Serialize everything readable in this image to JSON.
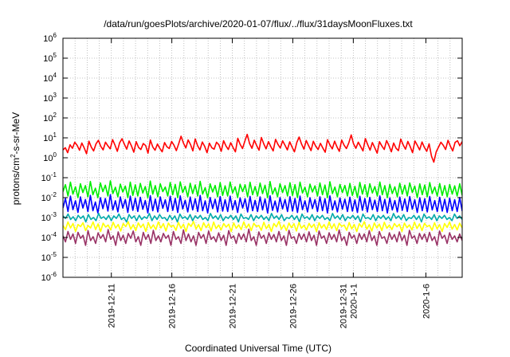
{
  "chart_data": {
    "type": "line",
    "title": "/data/run/goesPlots/archive/2020-01-07/flux/../flux/31daysMoonFluxes.txt",
    "xlabel": "Coordinated Universal Time (UTC)",
    "ylabel_parts": [
      "protons/cm",
      "2",
      "-s-sr-MeV"
    ],
    "y_scale": "log",
    "ylim": [
      1e-06,
      1000000.0
    ],
    "xlim": [
      "2019-12-07",
      "2020-01-09"
    ],
    "grid": true,
    "y_ticks": [
      {
        "value": 1e-06,
        "base": "10",
        "exp": "-6"
      },
      {
        "value": 1e-05,
        "base": "10",
        "exp": "-5"
      },
      {
        "value": 0.0001,
        "base": "10",
        "exp": "-4"
      },
      {
        "value": 0.001,
        "base": "10",
        "exp": "-3"
      },
      {
        "value": 0.01,
        "base": "10",
        "exp": "-2"
      },
      {
        "value": 0.1,
        "base": "10",
        "exp": "-1"
      },
      {
        "value": 1.0,
        "base": "10",
        "exp": "0"
      },
      {
        "value": 10.0,
        "base": "10",
        "exp": "1"
      },
      {
        "value": 100.0,
        "base": "10",
        "exp": "2"
      },
      {
        "value": 1000.0,
        "base": "10",
        "exp": "3"
      },
      {
        "value": 10000.0,
        "base": "10",
        "exp": "4"
      },
      {
        "value": 100000.0,
        "base": "10",
        "exp": "5"
      },
      {
        "value": 1000000.0,
        "base": "10",
        "exp": "6"
      }
    ],
    "x_ticks": [
      {
        "date": "2019-12-11",
        "labels": [
          "2019-12-11"
        ]
      },
      {
        "date": "2019-12-16",
        "labels": [
          "2019-12-16"
        ]
      },
      {
        "date": "2019-12-21",
        "labels": [
          "2019-12-21"
        ]
      },
      {
        "date": "2019-12-26",
        "labels": [
          "2019-12-26"
        ]
      },
      {
        "date": "2019-12-31",
        "labels": [
          "2019-12-31",
          "2020-1-1"
        ]
      },
      {
        "date": "2020-01-06",
        "labels": [
          "2020-1-6"
        ]
      }
    ],
    "series": [
      {
        "color": "#ff0000",
        "x_start": "2019-12-07",
        "x_end": "2020-01-09",
        "values": [
          2.5,
          3.2,
          1.8,
          4.5,
          3.0,
          6.0,
          4.2,
          2.4,
          5.5,
          3.1,
          1.6,
          6.8,
          3.4,
          2.2,
          5.0,
          7.5,
          3.8,
          2.5,
          6.1,
          4.0,
          2.8,
          8.2,
          4.4,
          2.1,
          5.6,
          9.0,
          4.8,
          2.7,
          7.0,
          3.9,
          1.9,
          6.4,
          3.3,
          2.6,
          5.2,
          4.1,
          1.7,
          7.8,
          3.5,
          2.4,
          4.9,
          3.0,
          2.0,
          5.8,
          3.6,
          2.9,
          6.6,
          4.3,
          2.3,
          5.1,
          12.0,
          5.5,
          3.1,
          7.9,
          4.6,
          2.2,
          8.8,
          4.0,
          2.5,
          6.2,
          3.7,
          1.8,
          5.4,
          3.2,
          2.7,
          6.0,
          4.5,
          2.1,
          7.2,
          3.9,
          2.6,
          5.7,
          3.3,
          2.0,
          9.5,
          4.8,
          2.9,
          6.9,
          15.0,
          5.2,
          3.0,
          7.6,
          4.1,
          2.4,
          10.5,
          5.0,
          2.8,
          6.5,
          3.6,
          2.2,
          8.4,
          4.7,
          3.1,
          7.1,
          4.2,
          2.5,
          6.3,
          3.4,
          2.0,
          5.9,
          11.0,
          4.9,
          2.7,
          7.4,
          4.0,
          2.3,
          6.7,
          3.8,
          2.6,
          5.3,
          3.1,
          1.9,
          8.1,
          4.4,
          2.8,
          6.8,
          3.5,
          2.1,
          7.7,
          4.3,
          2.9,
          5.6,
          14.0,
          5.1,
          3.0,
          6.1,
          3.7,
          2.2,
          9.2,
          4.6,
          2.4,
          5.8,
          3.2,
          1.7,
          6.4,
          3.9,
          2.6,
          7.3,
          4.1,
          2.0,
          5.5,
          3.0,
          2.3,
          8.6,
          4.5,
          2.7,
          6.6,
          3.6,
          1.8,
          7.0,
          4.2,
          2.5,
          6.2,
          3.3,
          2.1,
          5.0,
          1.2,
          0.6,
          2.0,
          3.5,
          6.0,
          4.2,
          2.6,
          7.5,
          3.8,
          2.2,
          5.9,
          7.2,
          4.0,
          6.5
        ]
      },
      {
        "color": "#00ee00",
        "x_start": "2019-12-07",
        "x_end": "2020-01-09",
        "values": [
          0.02,
          0.045,
          0.012,
          0.06,
          0.015,
          0.035,
          0.01,
          0.05,
          0.018,
          0.04,
          0.011,
          0.065,
          0.014,
          0.03,
          0.01,
          0.055,
          0.02,
          0.042,
          0.012,
          0.07,
          0.016,
          0.033,
          0.011,
          0.048,
          0.019,
          0.038,
          0.01,
          0.06,
          0.013,
          0.044,
          0.012,
          0.052,
          0.017,
          0.036,
          0.01,
          0.068,
          0.015,
          0.04,
          0.011,
          0.05,
          0.02,
          0.034,
          0.012,
          0.058,
          0.014,
          0.046,
          0.01,
          0.062,
          0.018,
          0.037,
          0.011,
          0.053,
          0.016,
          0.043,
          0.012,
          0.066,
          0.015,
          0.032,
          0.01,
          0.049,
          0.019,
          0.041,
          0.011,
          0.057,
          0.013,
          0.039,
          0.012,
          0.061,
          0.017,
          0.035,
          0.01,
          0.047,
          0.02,
          0.044,
          0.011,
          0.059,
          0.014,
          0.036,
          0.012,
          0.054,
          0.016,
          0.042,
          0.01,
          0.064,
          0.015,
          0.031,
          0.011,
          0.05,
          0.018,
          0.04,
          0.012,
          0.056,
          0.013,
          0.045,
          0.01,
          0.06,
          0.017,
          0.033,
          0.011,
          0.048,
          0.019,
          0.039,
          0.012,
          0.055,
          0.014,
          0.043,
          0.01,
          0.063,
          0.016,
          0.034,
          0.011,
          0.046,
          0.018,
          0.041,
          0.012,
          0.052,
          0.013,
          0.037,
          0.01,
          0.058,
          0.015,
          0.044,
          0.011,
          0.05,
          0.017,
          0.036,
          0.012,
          0.061,
          0.014,
          0.04,
          0.01,
          0.047,
          0.016,
          0.035,
          0.011,
          0.053,
          0.015,
          0.042,
          0.012,
          0.055,
          0.018,
          0.038,
          0.01,
          0.049,
          0.014,
          0.043,
          0.011,
          0.057,
          0.016,
          0.034,
          0.012,
          0.051,
          0.013,
          0.04,
          0.011,
          0.046,
          0.015,
          0.039,
          0.012,
          0.05,
          0.013
        ]
      },
      {
        "color": "#0000ff",
        "x_start": "2019-12-07",
        "x_end": "2020-01-09",
        "values": [
          0.003,
          0.009,
          0.002,
          0.012,
          0.0025,
          0.007,
          0.0018,
          0.011,
          0.003,
          0.008,
          0.002,
          0.013,
          0.0022,
          0.006,
          0.0017,
          0.01,
          0.0028,
          0.009,
          0.0021,
          0.014,
          0.0024,
          0.007,
          0.0019,
          0.011,
          0.003,
          0.008,
          0.0018,
          0.012,
          0.0023,
          0.0095,
          0.002,
          0.0105,
          0.0026,
          0.0072,
          0.0017,
          0.0125,
          0.0022,
          0.0085,
          0.0019,
          0.011,
          0.0029,
          0.0078,
          0.002,
          0.0118,
          0.0023,
          0.0092,
          0.0018,
          0.0122,
          0.0027,
          0.0074,
          0.0019,
          0.0108,
          0.0024,
          0.0088,
          0.002,
          0.0128,
          0.0022,
          0.0069,
          0.0017,
          0.0102,
          0.0028,
          0.0083,
          0.0019,
          0.0115,
          0.0021,
          0.0079,
          0.002,
          0.012,
          0.0025,
          0.0071,
          0.0018,
          0.0098,
          0.003,
          0.0087,
          0.0019,
          0.0116,
          0.0022,
          0.0073,
          0.002,
          0.0109,
          0.0024,
          0.0086,
          0.0017,
          0.0124,
          0.0023,
          0.0068,
          0.0019,
          0.0101,
          0.0027,
          0.0081,
          0.002,
          0.0112,
          0.0021,
          0.0091,
          0.0018,
          0.0119,
          0.0025,
          0.007,
          0.0019,
          0.0099,
          0.0028,
          0.008,
          0.002,
          0.0111,
          0.0022,
          0.0089,
          0.0017,
          0.0123,
          0.0024,
          0.0069,
          0.0019,
          0.0096,
          0.0026,
          0.0084,
          0.002,
          0.0106,
          0.0021,
          0.0077,
          0.0018,
          0.0117,
          0.0023,
          0.009,
          0.0019,
          0.0103,
          0.0025,
          0.0075,
          0.002,
          0.0121,
          0.0022,
          0.0082,
          0.0017,
          0.0097,
          0.0024,
          0.0072,
          0.0019,
          0.0107,
          0.0023,
          0.0086,
          0.002,
          0.0113,
          0.0026,
          0.0078,
          0.0018,
          0.01,
          0.0022,
          0.0088,
          0.0019,
          0.0114,
          0.0024,
          0.0071,
          0.002,
          0.0104,
          0.0021,
          0.0083,
          0.0018,
          0.0095,
          0.0022,
          0.0079,
          0.002,
          0.0102,
          0.0021
        ]
      },
      {
        "color": "#00aaaa",
        "x_start": "2019-12-07",
        "x_end": "2020-01-09",
        "values": [
          0.0012,
          0.0009,
          0.0015,
          0.0008,
          0.0011,
          0.0007,
          0.0013,
          0.0009,
          0.0012,
          0.0006,
          0.0014,
          0.0008,
          0.001,
          0.0007,
          0.0016,
          0.0009,
          0.0011,
          0.0008,
          0.0013,
          0.0007,
          0.0012,
          0.0009,
          0.0015,
          0.0008,
          0.001,
          0.0006,
          0.0014,
          0.0009,
          0.0012,
          0.0007,
          0.0013,
          0.0008,
          0.0011,
          0.0009,
          0.0016,
          0.0007,
          0.0012,
          0.0008,
          0.0014,
          0.0009,
          0.001,
          0.0007,
          0.0013,
          0.0008,
          0.0012,
          0.0006,
          0.0015,
          0.0009,
          0.0011,
          0.0008,
          0.0014,
          0.0007,
          0.0012,
          0.0009,
          0.0013,
          0.0008,
          0.001,
          0.0007,
          0.0016,
          0.0009,
          0.0012,
          0.0008,
          0.0014,
          0.0007,
          0.0011,
          0.0009,
          0.0013,
          0.0008,
          0.0012,
          0.0006,
          0.0015,
          0.0009,
          0.001,
          0.0008,
          0.0014,
          0.0007,
          0.0012,
          0.0009,
          0.0013,
          0.0008,
          0.0011,
          0.0007,
          0.0016,
          0.0009,
          0.0012,
          0.0008,
          0.0014,
          0.0007,
          0.001,
          0.0009,
          0.0013,
          0.0008,
          0.0012,
          0.0006,
          0.0015,
          0.0009,
          0.0011,
          0.0008,
          0.0014,
          0.0007,
          0.0012,
          0.0009,
          0.0013,
          0.0008,
          0.001,
          0.0007,
          0.0016,
          0.0009,
          0.0012,
          0.0008,
          0.0014,
          0.0007,
          0.0011,
          0.0009,
          0.0013,
          0.0008,
          0.0012,
          0.0006,
          0.0015,
          0.0009,
          0.001,
          0.0008,
          0.0014,
          0.0007,
          0.0012,
          0.0009,
          0.0013,
          0.0008,
          0.0011,
          0.0007,
          0.0016,
          0.0009,
          0.0012,
          0.0008,
          0.0014,
          0.0007,
          0.001,
          0.0009,
          0.0013,
          0.0008,
          0.0012,
          0.0006,
          0.0015,
          0.0009,
          0.0011,
          0.0008,
          0.0014,
          0.0007,
          0.0012,
          0.0009,
          0.0013,
          0.0008,
          0.001,
          0.0007,
          0.0015,
          0.0009,
          0.0012,
          0.0008
        ]
      },
      {
        "color": "#ffff00",
        "x_start": "2019-12-07",
        "x_end": "2020-01-09",
        "values": [
          0.0004,
          0.00025,
          0.0006,
          0.0003,
          0.0005,
          0.0002,
          0.00045,
          0.00035,
          0.00055,
          0.00022,
          0.0004,
          0.0003,
          0.0006,
          0.00025,
          0.00048,
          0.0002,
          0.00052,
          0.00033,
          0.00042,
          0.00024,
          0.00058,
          0.0003,
          0.00045,
          0.00021,
          0.0005,
          0.00035,
          0.00062,
          0.00026,
          0.00044,
          0.00022,
          0.00054,
          0.00032,
          0.00047,
          0.0002,
          0.00056,
          0.00028,
          0.00043,
          0.00025,
          0.0006,
          0.0003,
          0.00049,
          0.00021,
          0.00053,
          0.00034,
          0.00041,
          0.00023,
          0.00057,
          0.00029,
          0.00046,
          0.0002,
          0.00051,
          0.00036,
          0.00063,
          0.00027,
          0.00044,
          0.00022,
          0.00055,
          0.00031,
          0.00048,
          0.00021,
          0.00059,
          0.00028,
          0.00042,
          0.00024,
          0.0005,
          0.00033,
          0.00046,
          0.0002,
          0.00054,
          0.00029,
          0.00043,
          0.00025,
          0.00061,
          0.0003,
          0.00047,
          0.00022,
          0.00052,
          0.00035,
          0.0004,
          0.00023,
          0.00058,
          0.00028,
          0.00045,
          0.0002,
          0.0005,
          0.00034,
          0.00064,
          0.00026,
          0.00043,
          0.00022,
          0.00053,
          0.00031,
          0.00049,
          0.00021,
          0.00057,
          0.00029,
          0.00041,
          0.00024,
          0.00051,
          0.00032,
          0.00046,
          0.0002,
          0.00055,
          0.0003,
          0.00044,
          0.00025,
          0.0006,
          0.00028,
          0.00048,
          0.00022,
          0.00052,
          0.00036,
          0.00042,
          0.00023,
          0.00056,
          0.00027,
          0.00045,
          0.0002,
          0.00049,
          0.00033,
          0.00062,
          0.00026,
          0.00044,
          0.00021,
          0.00054,
          0.0003,
          0.00047,
          0.00022,
          0.00058,
          0.00029,
          0.00042,
          0.00025,
          0.0005,
          0.00034,
          0.00046,
          0.0002,
          0.00053,
          0.00031,
          0.00043,
          0.00024,
          0.00059,
          0.00028,
          0.00048,
          0.00022,
          0.00051,
          0.00035,
          0.00041,
          0.00023,
          0.00055,
          0.00027,
          0.00044,
          0.0002,
          0.0005,
          0.00032,
          0.0006,
          0.00026,
          0.00045,
          0.00024,
          0.00052,
          0.0003
        ]
      },
      {
        "color": "#993366",
        "x_start": "2019-12-07",
        "x_end": "2020-01-09",
        "values": [
          0.00012,
          6e-05,
          0.0002,
          8e-05,
          0.00015,
          5e-05,
          0.00018,
          9e-05,
          0.00013,
          4e-05,
          0.00022,
          7e-05,
          0.00011,
          5e-05,
          0.00017,
          9e-05,
          0.00014,
          6e-05,
          0.00025,
          8e-05,
          0.00012,
          4e-05,
          0.00019,
          7e-05,
          0.00013,
          5e-05,
          0.00016,
          9e-05,
          0.00021,
          6e-05,
          0.00011,
          4e-05,
          0.00018,
          8e-05,
          0.00014,
          5e-05,
          0.00023,
          7e-05,
          0.00012,
          6e-05,
          0.00016,
          9e-05,
          0.00013,
          4e-05,
          0.0002,
          8e-05,
          0.00011,
          5e-05,
          0.00024,
          7e-05,
          0.00015,
          6e-05,
          0.00012,
          4e-05,
          0.00018,
          9e-05,
          0.00014,
          5e-05,
          0.00021,
          8e-05,
          0.00011,
          6e-05,
          0.00017,
          7e-05,
          0.00013,
          4e-05,
          0.00022,
          9e-05,
          0.00012,
          5e-05,
          0.00016,
          8e-05,
          0.00015,
          6e-05,
          0.00026,
          7e-05,
          0.00011,
          4e-05,
          0.00019,
          9e-05,
          0.00013,
          5e-05,
          0.00017,
          8e-05,
          0.00014,
          6e-05,
          0.0002,
          7e-05,
          0.00012,
          4e-05,
          0.00023,
          9e-05,
          0.00011,
          5e-05,
          0.00016,
          8e-05,
          0.00015,
          6e-05,
          0.00019,
          7e-05,
          0.00013,
          4e-05,
          0.00021,
          9e-05,
          0.00012,
          5e-05,
          0.00017,
          8e-05,
          0.00014,
          6e-05,
          0.00024,
          7e-05,
          0.00011,
          4e-05,
          0.00018,
          9e-05,
          0.00013,
          5e-05,
          0.00016,
          8e-05,
          0.00015,
          6e-05,
          0.00022,
          7e-05,
          0.00012,
          4e-05,
          0.0002,
          9e-05,
          0.00011,
          5e-05,
          0.00017,
          8e-05,
          0.00014,
          6e-05,
          0.00019,
          7e-05,
          0.00013,
          4e-05,
          0.00023,
          9e-05,
          0.00012,
          5e-05,
          0.00016,
          8e-05,
          0.00015,
          6e-05,
          0.00018,
          7e-05,
          0.00011,
          4e-05,
          0.00021,
          9e-05,
          0.00013,
          5e-05,
          0.00017,
          8e-05,
          0.00012,
          6e-05,
          0.00015,
          7e-05
        ]
      }
    ]
  }
}
